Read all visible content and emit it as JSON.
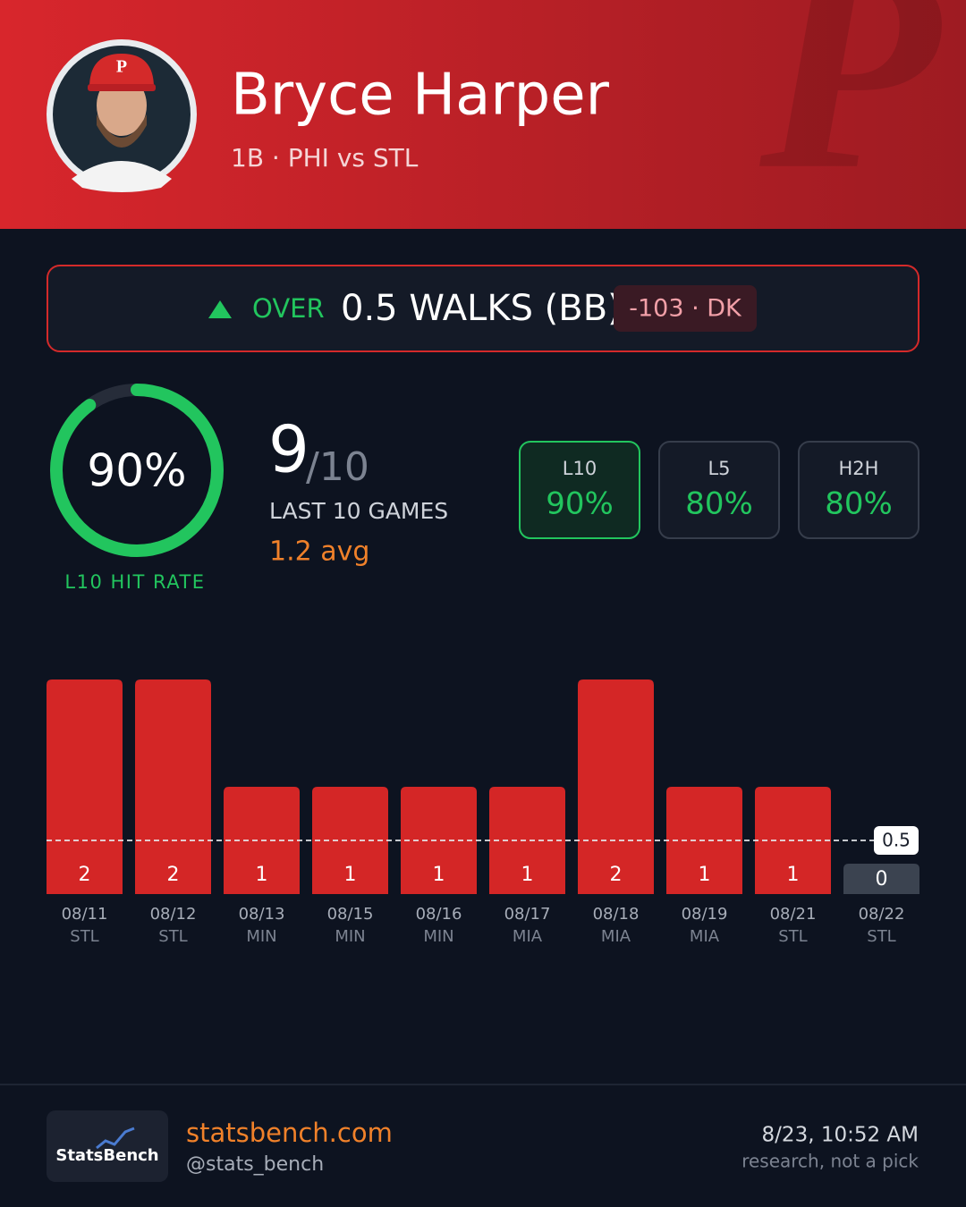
{
  "header": {
    "name": "Bryce Harper",
    "subtitle": "1B · PHI vs STL"
  },
  "prop": {
    "side": "OVER",
    "line": "0.5 WALKS (BB)",
    "odds": "-103 · DK"
  },
  "hit_rate": {
    "value": 90,
    "label": "90%",
    "caption": "L10 HIT RATE"
  },
  "record": {
    "hits": 9,
    "total": "/10",
    "games": "LAST 10 GAMES",
    "avg": "1.2 avg"
  },
  "splits": [
    {
      "label": "L10",
      "value": "90%"
    },
    {
      "label": "L5",
      "value": "80%"
    },
    {
      "label": "H2H",
      "value": "80%"
    }
  ],
  "chart_data": {
    "type": "bar",
    "categories": [
      "08/11",
      "08/12",
      "08/13",
      "08/15",
      "08/16",
      "08/17",
      "08/18",
      "08/19",
      "08/21",
      "08/22"
    ],
    "opponents": [
      "STL",
      "STL",
      "MIN",
      "MIN",
      "MIN",
      "MIA",
      "MIA",
      "MIA",
      "STL",
      "STL"
    ],
    "values": [
      2,
      2,
      1,
      1,
      1,
      1,
      2,
      1,
      1,
      0
    ],
    "line": 0.5,
    "hit_color": "#d42626",
    "miss_color": "#3b4350"
  },
  "footer": {
    "logo": "StatsBench",
    "site": "statsbench.com",
    "handle": "@stats_bench",
    "timestamp": "8/23, 10:52 AM",
    "disclaimer": "research, not a pick"
  }
}
